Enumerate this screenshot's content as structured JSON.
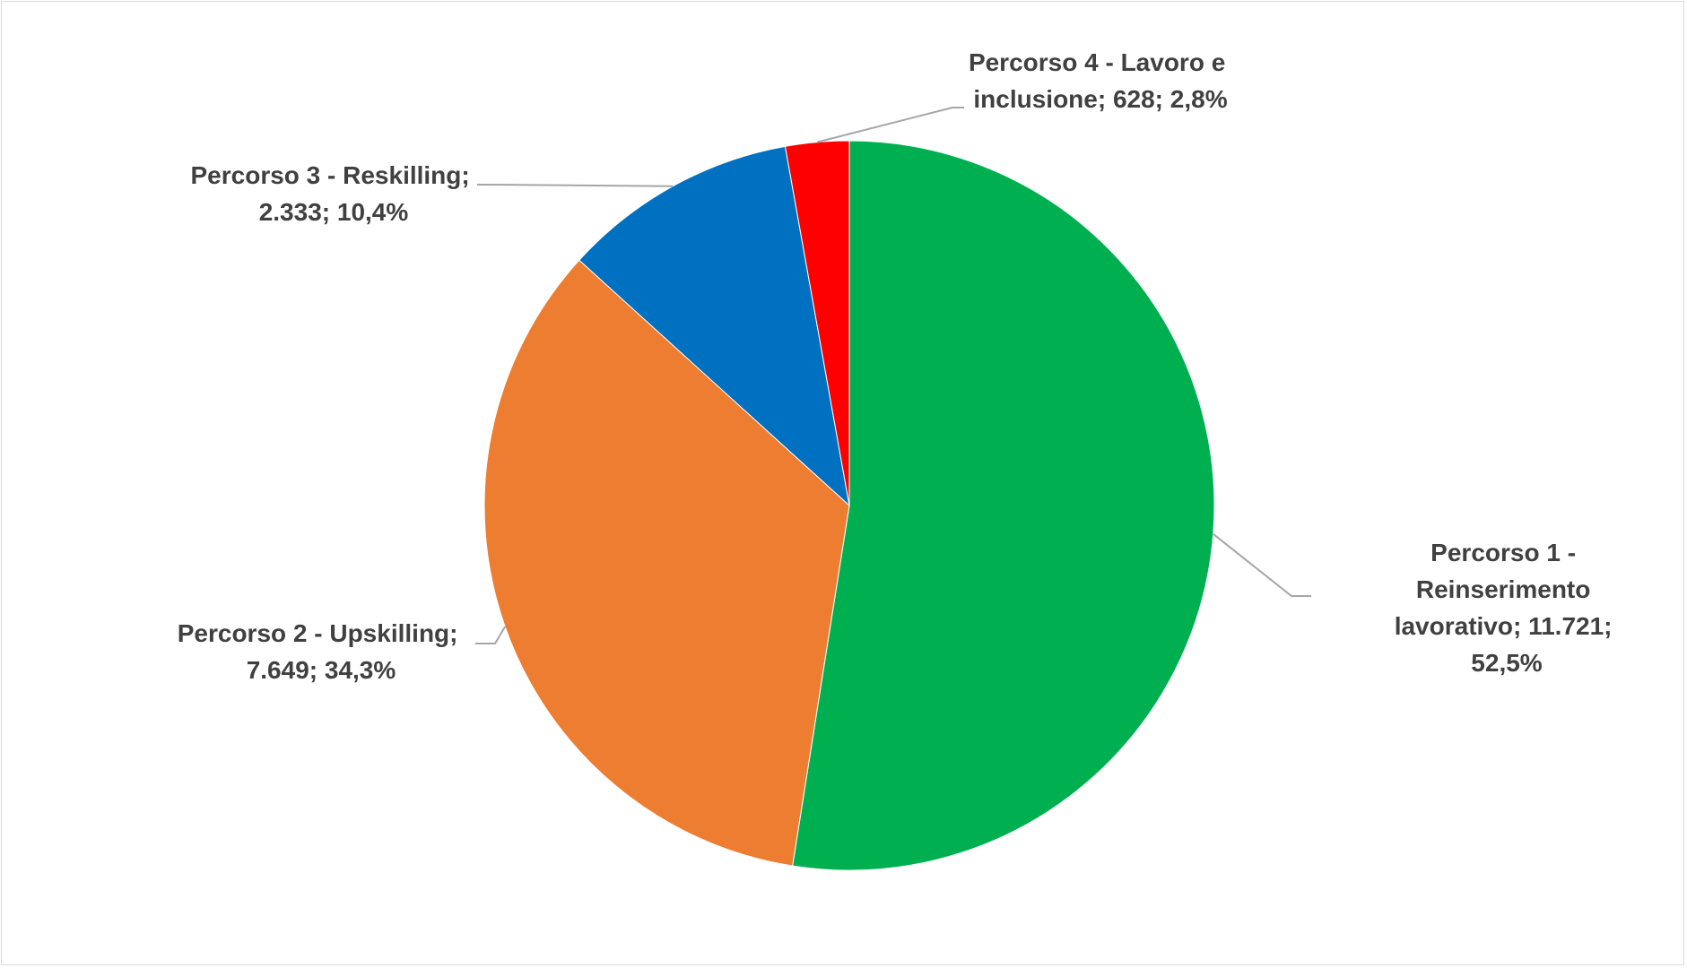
{
  "chart_data": {
    "type": "pie",
    "title": "",
    "start_angle_deg": 0,
    "direction": "clockwise",
    "slices": [
      {
        "name": "Percorso 1 - Reinserimento lavorativo",
        "value": 11721,
        "percent": 52.5,
        "color": "#00B050",
        "label_lines": [
          "Percorso 1 -",
          "Reinserimento",
          "lavorativo; 11.721;",
          "52,5%"
        ]
      },
      {
        "name": "Percorso 2 - Upskilling",
        "value": 7649,
        "percent": 34.3,
        "color": "#ED7D31",
        "label_lines": [
          "Percorso 2 - Upskilling;",
          "7.649; 34,3%"
        ]
      },
      {
        "name": "Percorso 3 - Reskilling",
        "value": 2333,
        "percent": 10.4,
        "color": "#0070C0",
        "label_lines": [
          "Percorso 3 - Reskilling;",
          "2.333; 10,4%"
        ]
      },
      {
        "name": "Percorso 4 - Lavoro e inclusione",
        "value": 628,
        "percent": 2.8,
        "color": "#FF0000",
        "label_lines": [
          "Percorso 4 - Lavoro e",
          "inclusione; 628; 2,8%"
        ]
      }
    ],
    "leader_line_color": "#A6A6A6",
    "label_color": "#404040",
    "legend": "none",
    "grid": false
  }
}
